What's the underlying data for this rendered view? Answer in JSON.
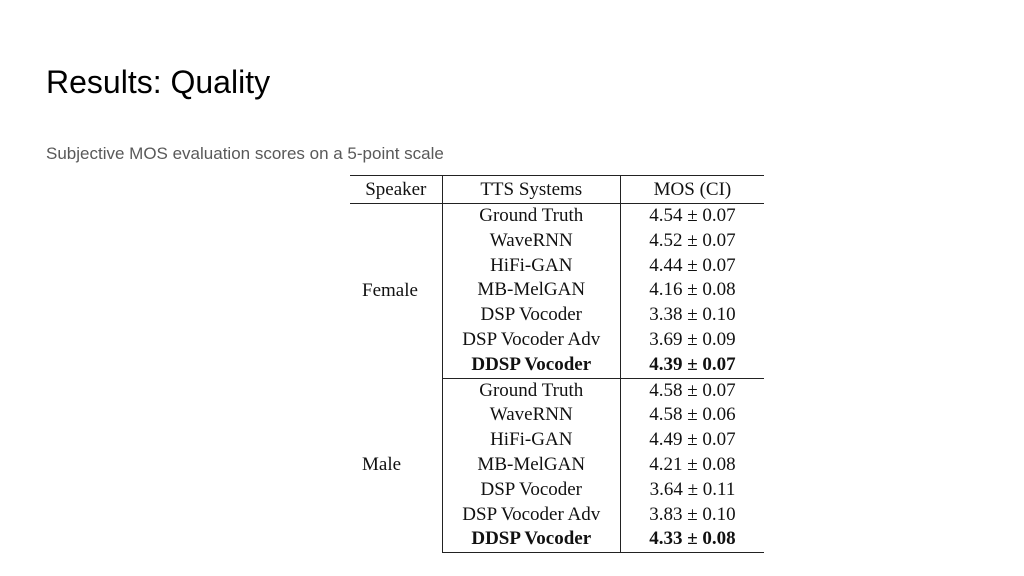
{
  "slide": {
    "title": "Results: Quality",
    "subtitle": "Subjective MOS evaluation scores on a 5-point scale"
  },
  "table": {
    "headers": [
      "Speaker",
      "TTS Systems",
      "MOS (CI)"
    ],
    "groups": [
      {
        "speaker": "Female",
        "rows": [
          {
            "system": "Ground Truth",
            "mos": "4.54 ± 0.07",
            "bold": false
          },
          {
            "system": "WaveRNN",
            "mos": "4.52 ± 0.07",
            "bold": false
          },
          {
            "system": "HiFi-GAN",
            "mos": "4.44 ± 0.07",
            "bold": false
          },
          {
            "system": "MB-MelGAN",
            "mos": "4.16 ± 0.08",
            "bold": false
          },
          {
            "system": "DSP Vocoder",
            "mos": "3.38 ± 0.10",
            "bold": false
          },
          {
            "system": "DSP Vocoder Adv",
            "mos": "3.69 ± 0.09",
            "bold": false
          },
          {
            "system": "DDSP Vocoder",
            "mos": "4.39 ± 0.07",
            "bold": true
          }
        ]
      },
      {
        "speaker": "Male",
        "rows": [
          {
            "system": "Ground Truth",
            "mos": "4.58 ± 0.07",
            "bold": false
          },
          {
            "system": "WaveRNN",
            "mos": "4.58 ± 0.06",
            "bold": false
          },
          {
            "system": "HiFi-GAN",
            "mos": "4.49 ± 0.07",
            "bold": false
          },
          {
            "system": "MB-MelGAN",
            "mos": "4.21 ± 0.08",
            "bold": false
          },
          {
            "system": "DSP Vocoder",
            "mos": "3.64 ± 0.11",
            "bold": false
          },
          {
            "system": "DSP Vocoder Adv",
            "mos": "3.83 ± 0.10",
            "bold": false
          },
          {
            "system": "DDSP Vocoder",
            "mos": "4.33 ± 0.08",
            "bold": true
          }
        ]
      }
    ]
  }
}
